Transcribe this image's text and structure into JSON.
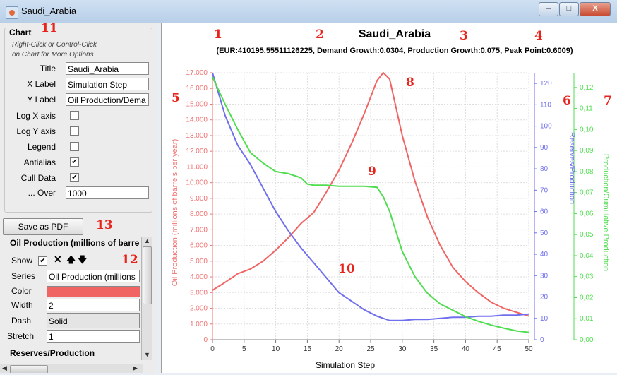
{
  "window": {
    "title": "Saudi_Arabia",
    "min": "–",
    "max": "□",
    "close": "X"
  },
  "panel": {
    "group_title": "Chart",
    "hint_line1": "Right-Click or Control-Click",
    "hint_line2": "on Chart for More Options",
    "fields": [
      {
        "label": "Title",
        "value": "Saudi_Arabia"
      },
      {
        "label": "X Label",
        "value": "Simulation Step"
      },
      {
        "label": "Y Label",
        "value": "Oil Production/Dema"
      }
    ],
    "checks": [
      {
        "label": "Log X axis",
        "checked": ""
      },
      {
        "label": "Log Y axis",
        "checked": ""
      },
      {
        "label": "Legend",
        "checked": ""
      },
      {
        "label": "Antialias",
        "checked": "✔"
      },
      {
        "label": "Cull Data",
        "checked": "✔"
      }
    ],
    "over_label": "... Over",
    "over_value": "1000",
    "save_button": "Save as PDF",
    "series_editor": [
      {
        "title": "Oil Production (millions of barre",
        "show_label": "Show",
        "show_checked": "✔",
        "series_label": "Series",
        "series_value": "Oil Production (millions",
        "color_label": "Color",
        "color": "#f06464",
        "width_label": "Width",
        "width_value": "2",
        "dash_label": "Dash",
        "dash_value": "Solid",
        "stretch_label": "Stretch",
        "stretch_value": "1"
      },
      {
        "title": "Reserves/Production",
        "show_label": "Show",
        "show_checked": "✔",
        "series_label": "Series",
        "series_value": "Reserves/Production"
      }
    ]
  },
  "annotations": [
    "1",
    "2",
    "3",
    "4",
    "5",
    "6",
    "7",
    "8",
    "9",
    "10",
    "11",
    "12",
    "13"
  ],
  "chart_data": {
    "type": "line",
    "title": "Saudi_Arabia",
    "subtitle": "(EUR:410195.55511126225, Demand Growth:0.0304, Production Growth:0.075, Peak Point:0.6009)",
    "xlabel": "Simulation Step",
    "xlim": [
      0,
      50
    ],
    "xticks": [
      0,
      5,
      10,
      15,
      20,
      25,
      30,
      35,
      40,
      45,
      50
    ],
    "grid": true,
    "legend": false,
    "axes": {
      "left": {
        "label": "Oil Production (millions of barrels per year)",
        "range": [
          0,
          17000
        ],
        "color": "#f07070",
        "ticks": [
          "0",
          "1.000",
          "2.000",
          "3.000",
          "4.000",
          "5.000",
          "6.000",
          "7.000",
          "8.000",
          "9.000",
          "10.000",
          "11.000",
          "12.000",
          "13.000",
          "14.000",
          "15.000",
          "16.000",
          "17.000"
        ]
      },
      "right1": {
        "label": "Reserves/Production",
        "range": [
          0,
          125
        ],
        "color": "#7070ee",
        "ticks": [
          "0",
          "10",
          "20",
          "30",
          "40",
          "50",
          "60",
          "70",
          "80",
          "90",
          "100",
          "110",
          "120"
        ]
      },
      "right2": {
        "label": "Production/Cumulative Production",
        "range": [
          0,
          0.127
        ],
        "color": "#50dd50",
        "ticks": [
          "0,00",
          "0,01",
          "0,02",
          "0,03",
          "0,04",
          "0,05",
          "0,06",
          "0,07",
          "0,08",
          "0,09",
          "0,10",
          "0,11",
          "0,12"
        ]
      }
    },
    "series": [
      {
        "name": "Oil Production (millions of barrels per year)",
        "axis": "left",
        "color": "#f06464",
        "x": [
          0,
          2,
          4,
          6,
          8,
          10,
          12,
          14,
          16,
          18,
          20,
          22,
          24,
          26,
          27,
          28,
          30,
          32,
          34,
          36,
          38,
          40,
          42,
          44,
          46,
          48,
          50
        ],
        "y": [
          3150,
          3650,
          4200,
          4500,
          5000,
          5700,
          6500,
          7400,
          8100,
          9400,
          10800,
          12500,
          14400,
          16500,
          17000,
          16600,
          13000,
          10100,
          7800,
          6000,
          4600,
          3700,
          3000,
          2400,
          2000,
          1750,
          1500
        ]
      },
      {
        "name": "Reserves/Production",
        "axis": "right1",
        "x": [
          0,
          2,
          4,
          6,
          8,
          10,
          12,
          14,
          16,
          18,
          20,
          22,
          24,
          26,
          28,
          30,
          32,
          34,
          36,
          38,
          40,
          42,
          44,
          46,
          48,
          50
        ],
        "y": [
          125,
          105,
          91,
          82,
          71,
          60,
          51,
          43,
          36,
          29,
          22,
          18,
          14,
          11,
          9,
          9,
          9.5,
          9.5,
          10,
          10.5,
          10.5,
          11,
          11,
          11.5,
          11.5,
          12
        ]
      },
      {
        "name": "Production/Cumulative Production",
        "axis": "right2",
        "x": [
          0,
          2,
          4,
          6,
          8,
          10,
          12,
          14,
          15,
          16,
          18,
          20,
          22,
          24,
          26,
          27,
          28,
          30,
          32,
          34,
          36,
          38,
          40,
          42,
          44,
          46,
          48,
          50
        ],
        "y": [
          0.125,
          0.112,
          0.1,
          0.089,
          0.084,
          0.08,
          0.079,
          0.077,
          0.074,
          0.0735,
          0.0735,
          0.073,
          0.073,
          0.073,
          0.0725,
          0.068,
          0.061,
          0.042,
          0.03,
          0.022,
          0.017,
          0.014,
          0.011,
          0.0088,
          0.007,
          0.0055,
          0.0042,
          0.0035
        ]
      }
    ]
  }
}
